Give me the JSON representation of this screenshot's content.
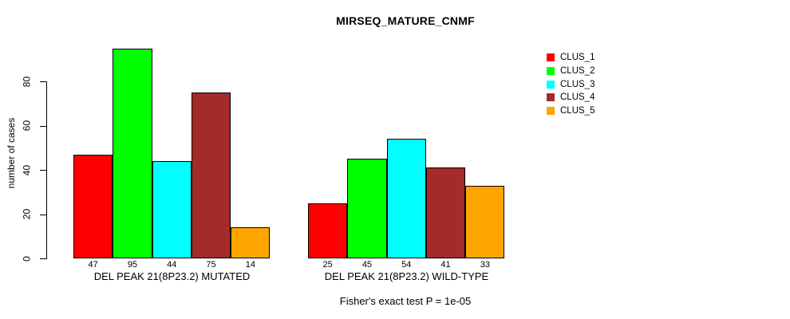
{
  "title": "MIRSEQ_MATURE_CNMF",
  "chart_data": {
    "type": "bar",
    "title": "MIRSEQ_MATURE_CNMF",
    "xlabel": "",
    "ylabel": "number of cases",
    "ylim": [
      0,
      95
    ],
    "yticks": [
      0,
      20,
      40,
      60,
      80
    ],
    "grid": false,
    "legend_position": "right",
    "categories": [
      "CLUS_1",
      "CLUS_2",
      "CLUS_3",
      "CLUS_4",
      "CLUS_5"
    ],
    "series_colors": [
      "#FF0000",
      "#00FF00",
      "#00FFFF",
      "#A52A2A",
      "#FFA500"
    ],
    "groups": [
      {
        "label": "DEL PEAK 21(8P23.2) MUTATED",
        "values": [
          47,
          95,
          44,
          75,
          14
        ]
      },
      {
        "label": "DEL PEAK 21(8P23.2) WILD-TYPE",
        "values": [
          25,
          45,
          54,
          41,
          33
        ]
      }
    ],
    "legend": [
      {
        "label": "CLUS_1",
        "color": "#FF0000"
      },
      {
        "label": "CLUS_2",
        "color": "#00FF00"
      },
      {
        "label": "CLUS_3",
        "color": "#00FFFF"
      },
      {
        "label": "CLUS_4",
        "color": "#A52A2A"
      },
      {
        "label": "CLUS_5",
        "color": "#FFA500"
      }
    ],
    "annotation": "Fisher's exact test P = 1e-05"
  }
}
